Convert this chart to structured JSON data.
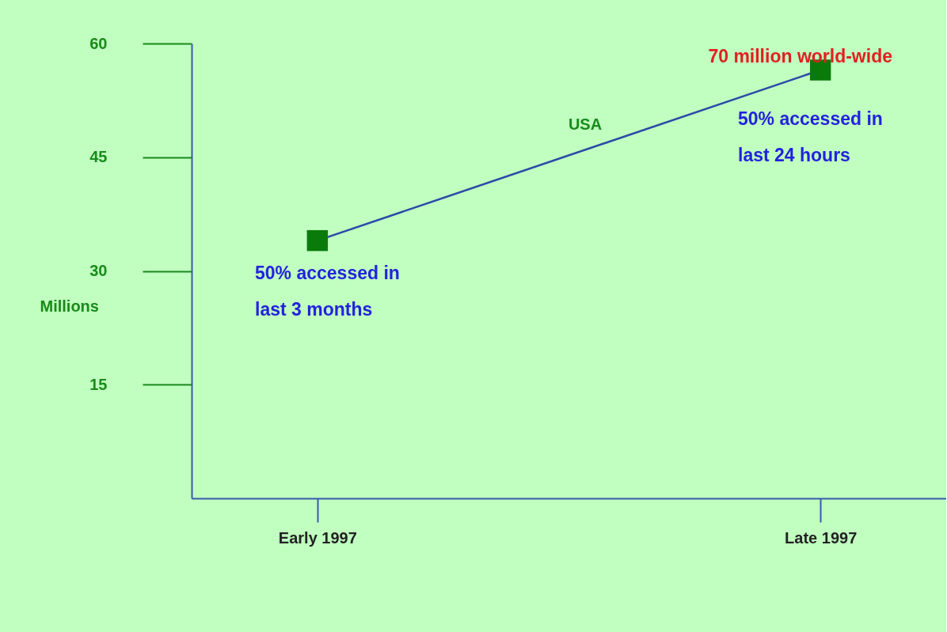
{
  "chart_data": {
    "type": "line",
    "categories": [
      "Early 1997",
      "Late 1997"
    ],
    "series": [
      {
        "name": "USA",
        "color": "#2a4aa8",
        "colors": [
          "#0a7a0a",
          "#0a7a0a"
        ],
        "values": [
          34,
          56.5
        ]
      }
    ],
    "ylabel": "Millions",
    "ylim": [
      0,
      60
    ],
    "yticks": [
      15,
      30,
      45,
      60
    ],
    "grid": false,
    "marker": "square",
    "line_style": "solid",
    "legend": false,
    "annotations": [
      "70 million world-wide",
      "50% accessed in\nlast 3 months",
      "50% accessed in\nlast 24 hours"
    ]
  }
}
